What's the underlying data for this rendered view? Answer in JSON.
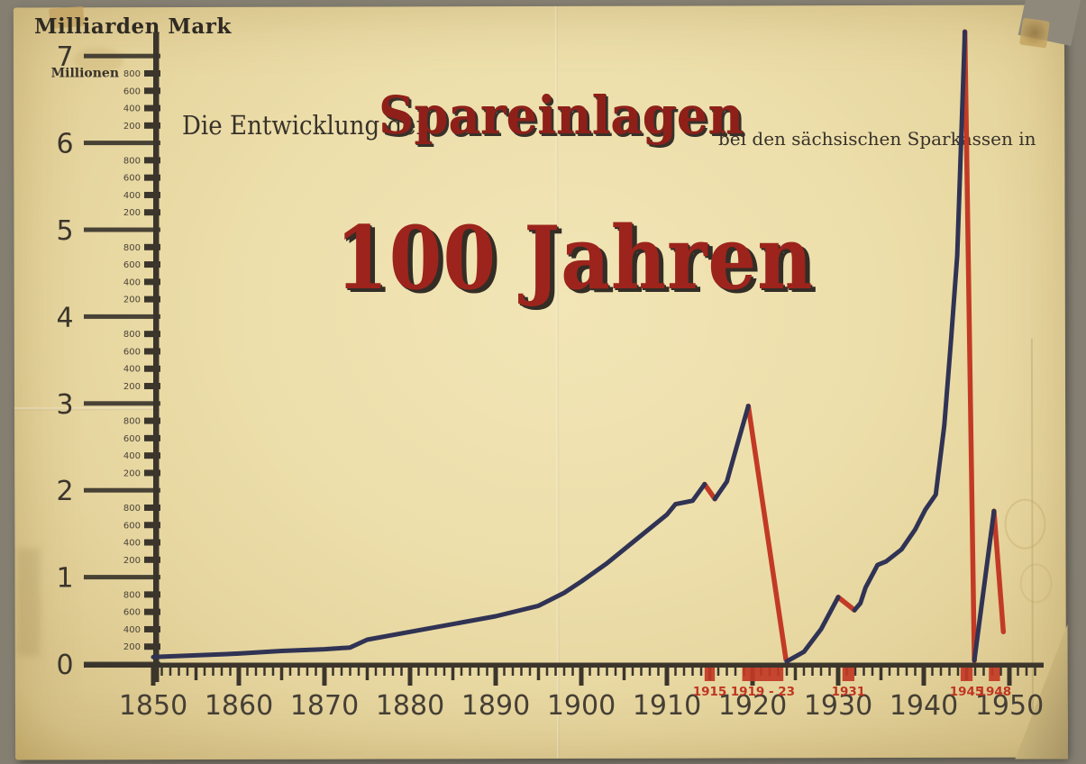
{
  "poster": {
    "yaxis_title": "Milliarden Mark",
    "title_prefix": "Die Entwicklung der",
    "title_main": "Spareinlagen",
    "title_suffix": "bei den sächsischen Sparkassen in",
    "title_big": "100 Jahren"
  },
  "colors": {
    "paper": "#eddfab",
    "ink": "#3b352c",
    "label_ink": "#453f35",
    "line_blue": "#303354",
    "line_red": "#c23a25",
    "red_label": "#c03522"
  },
  "chart_data": {
    "type": "line",
    "title": "Die Entwicklung der Spareinlagen bei den sächsischen Sparkassen in 100 Jahren",
    "ylabel": "Milliarden Mark",
    "y_sub_unit_label": "Millionen",
    "y_sub_tick_values": [
      200,
      400,
      600,
      800
    ],
    "y_ticks": [
      0,
      1,
      2,
      3,
      4,
      5,
      6,
      7
    ],
    "ylim": [
      0,
      7.5
    ],
    "xlim": [
      1850,
      1953
    ],
    "x_ticks_major": [
      1850,
      1860,
      1870,
      1880,
      1890,
      1900,
      1910,
      1920,
      1930,
      1940,
      1950
    ],
    "grid": false,
    "legend": null,
    "crisis_periods": [
      {
        "label": "1915",
        "start": 1914.4,
        "end": 1915.6
      },
      {
        "label": "1919 - 23",
        "start": 1918.8,
        "end": 1923.6
      },
      {
        "label": "1931",
        "start": 1930.5,
        "end": 1931.9
      },
      {
        "label": "1945",
        "start": 1944.3,
        "end": 1945.7
      },
      {
        "label": "1948",
        "start": 1947.6,
        "end": 1948.9
      }
    ],
    "series": [
      {
        "name": "main-line-blue",
        "color": "#303354",
        "width": 5,
        "segments": [
          [
            [
              1850,
              0.08
            ],
            [
              1855,
              0.1
            ],
            [
              1860,
              0.12
            ],
            [
              1865,
              0.15
            ],
            [
              1870,
              0.17
            ],
            [
              1873,
              0.19
            ],
            [
              1875,
              0.28
            ],
            [
              1880,
              0.37
            ],
            [
              1885,
              0.46
            ],
            [
              1890,
              0.55
            ],
            [
              1895,
              0.67
            ],
            [
              1898,
              0.82
            ],
            [
              1900,
              0.95
            ],
            [
              1903,
              1.16
            ],
            [
              1906,
              1.4
            ],
            [
              1910,
              1.72
            ],
            [
              1911,
              1.84
            ],
            [
              1913,
              1.88
            ],
            [
              1914.4,
              2.07
            ]
          ],
          [
            [
              1915.6,
              1.9
            ],
            [
              1917,
              2.1
            ],
            [
              1918,
              2.45
            ],
            [
              1919.5,
              2.97
            ]
          ],
          [
            [
              1924,
              0.03
            ],
            [
              1926,
              0.14
            ],
            [
              1928,
              0.4
            ],
            [
              1930,
              0.77
            ]
          ],
          [
            [
              1931.9,
              0.62
            ],
            [
              1932.6,
              0.7
            ],
            [
              1933.2,
              0.88
            ],
            [
              1934.6,
              1.14
            ],
            [
              1935.6,
              1.18
            ],
            [
              1937.4,
              1.32
            ],
            [
              1939,
              1.55
            ],
            [
              1940.2,
              1.78
            ],
            [
              1941.4,
              1.95
            ],
            [
              1942.4,
              2.75
            ],
            [
              1943.2,
              3.75
            ],
            [
              1943.9,
              4.7
            ],
            [
              1944.8,
              7.28
            ]
          ],
          [
            [
              1945.9,
              0.04
            ],
            [
              1948.2,
              1.76
            ]
          ]
        ]
      },
      {
        "name": "decline-line-red",
        "color": "#c23a25",
        "width": 5.5,
        "segments": [
          [
            [
              1914.4,
              2.07
            ],
            [
              1915.6,
              1.9
            ]
          ],
          [
            [
              1919.5,
              2.97
            ],
            [
              1923.9,
              0.05
            ]
          ],
          [
            [
              1930,
              0.77
            ],
            [
              1931.9,
              0.62
            ]
          ],
          [
            [
              1944.8,
              7.28
            ],
            [
              1945.9,
              0.04
            ]
          ],
          [
            [
              1948.2,
              1.76
            ],
            [
              1949.3,
              0.37
            ]
          ]
        ]
      }
    ]
  }
}
